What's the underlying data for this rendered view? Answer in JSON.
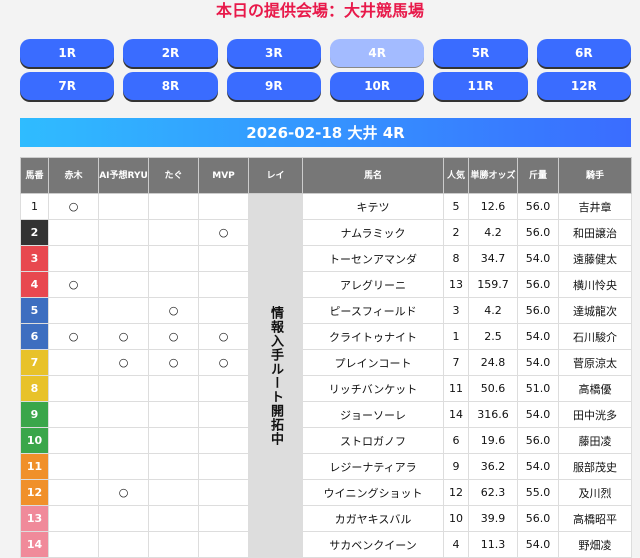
{
  "title": "本日の提供会場：大井競馬場",
  "races": [
    "1R",
    "2R",
    "3R",
    "4R",
    "5R",
    "6R",
    "7R",
    "8R",
    "9R",
    "10R",
    "11R",
    "12R"
  ],
  "active_race": "4R",
  "banner": "2026-02-18 大井 4R",
  "headers": [
    "馬番",
    "赤木",
    "AI予想RYU",
    "たぐ",
    "MVP",
    "レイ",
    "馬名",
    "人気",
    "単勝オッズ",
    "斤量",
    "騎手"
  ],
  "rei_text": "情報入手ルート開拓中",
  "mark": "○",
  "frame_colors": {
    "1": "#ffffff",
    "2": "#333333",
    "3": "#e8484f",
    "4": "#3d6ec0",
    "5": "#e8c22a",
    "6": "#3aa64a",
    "7": "#f0902a",
    "8": "#f08a9a"
  },
  "rows": [
    {
      "no": "1",
      "frame": 1,
      "akagi": "○",
      "ai": "",
      "tagu": "",
      "mvp": "",
      "name": "キテツ",
      "pop": "5",
      "odds": "12.6",
      "weight": "56.0",
      "jockey": "吉井章"
    },
    {
      "no": "2",
      "frame": 2,
      "akagi": "",
      "ai": "",
      "tagu": "",
      "mvp": "○",
      "name": "ナムラミック",
      "pop": "2",
      "odds": "4.2",
      "weight": "56.0",
      "jockey": "和田譲治"
    },
    {
      "no": "3",
      "frame": 3,
      "akagi": "",
      "ai": "",
      "tagu": "",
      "mvp": "",
      "name": "トーセンアマンダ",
      "pop": "8",
      "odds": "34.7",
      "weight": "54.0",
      "jockey": "遠藤健太"
    },
    {
      "no": "4",
      "frame": 3,
      "akagi": "○",
      "ai": "",
      "tagu": "",
      "mvp": "",
      "name": "アレグリーニ",
      "pop": "13",
      "odds": "159.7",
      "weight": "56.0",
      "jockey": "横川怜央"
    },
    {
      "no": "5",
      "frame": 4,
      "akagi": "",
      "ai": "",
      "tagu": "○",
      "mvp": "",
      "name": "ピースフィールド",
      "pop": "3",
      "odds": "4.2",
      "weight": "56.0",
      "jockey": "達城龍次"
    },
    {
      "no": "6",
      "frame": 4,
      "akagi": "○",
      "ai": "○",
      "tagu": "○",
      "mvp": "○",
      "name": "クライトゥナイト",
      "pop": "1",
      "odds": "2.5",
      "weight": "54.0",
      "jockey": "石川駿介"
    },
    {
      "no": "7",
      "frame": 5,
      "akagi": "",
      "ai": "○",
      "tagu": "○",
      "mvp": "○",
      "name": "プレインコート",
      "pop": "7",
      "odds": "24.8",
      "weight": "54.0",
      "jockey": "菅原涼太"
    },
    {
      "no": "8",
      "frame": 5,
      "akagi": "",
      "ai": "",
      "tagu": "",
      "mvp": "",
      "name": "リッチバンケット",
      "pop": "11",
      "odds": "50.6",
      "weight": "51.0",
      "jockey": "高橋優"
    },
    {
      "no": "9",
      "frame": 6,
      "akagi": "",
      "ai": "",
      "tagu": "",
      "mvp": "",
      "name": "ジョーソーレ",
      "pop": "14",
      "odds": "316.6",
      "weight": "54.0",
      "jockey": "田中洸多"
    },
    {
      "no": "10",
      "frame": 6,
      "akagi": "",
      "ai": "",
      "tagu": "",
      "mvp": "",
      "name": "ストロガノフ",
      "pop": "6",
      "odds": "19.6",
      "weight": "56.0",
      "jockey": "藤田凌"
    },
    {
      "no": "11",
      "frame": 7,
      "akagi": "",
      "ai": "",
      "tagu": "",
      "mvp": "",
      "name": "レジーナティアラ",
      "pop": "9",
      "odds": "36.2",
      "weight": "54.0",
      "jockey": "服部茂史"
    },
    {
      "no": "12",
      "frame": 7,
      "akagi": "",
      "ai": "○",
      "tagu": "",
      "mvp": "",
      "name": "ウイニングショット",
      "pop": "12",
      "odds": "62.3",
      "weight": "55.0",
      "jockey": "及川烈"
    },
    {
      "no": "13",
      "frame": 8,
      "akagi": "",
      "ai": "",
      "tagu": "",
      "mvp": "",
      "name": "カガヤキスバル",
      "pop": "10",
      "odds": "39.9",
      "weight": "56.0",
      "jockey": "高橋昭平"
    },
    {
      "no": "14",
      "frame": 8,
      "akagi": "",
      "ai": "",
      "tagu": "",
      "mvp": "",
      "name": "サカベンクイーン",
      "pop": "4",
      "odds": "11.3",
      "weight": "54.0",
      "jockey": "野畑凌"
    }
  ]
}
